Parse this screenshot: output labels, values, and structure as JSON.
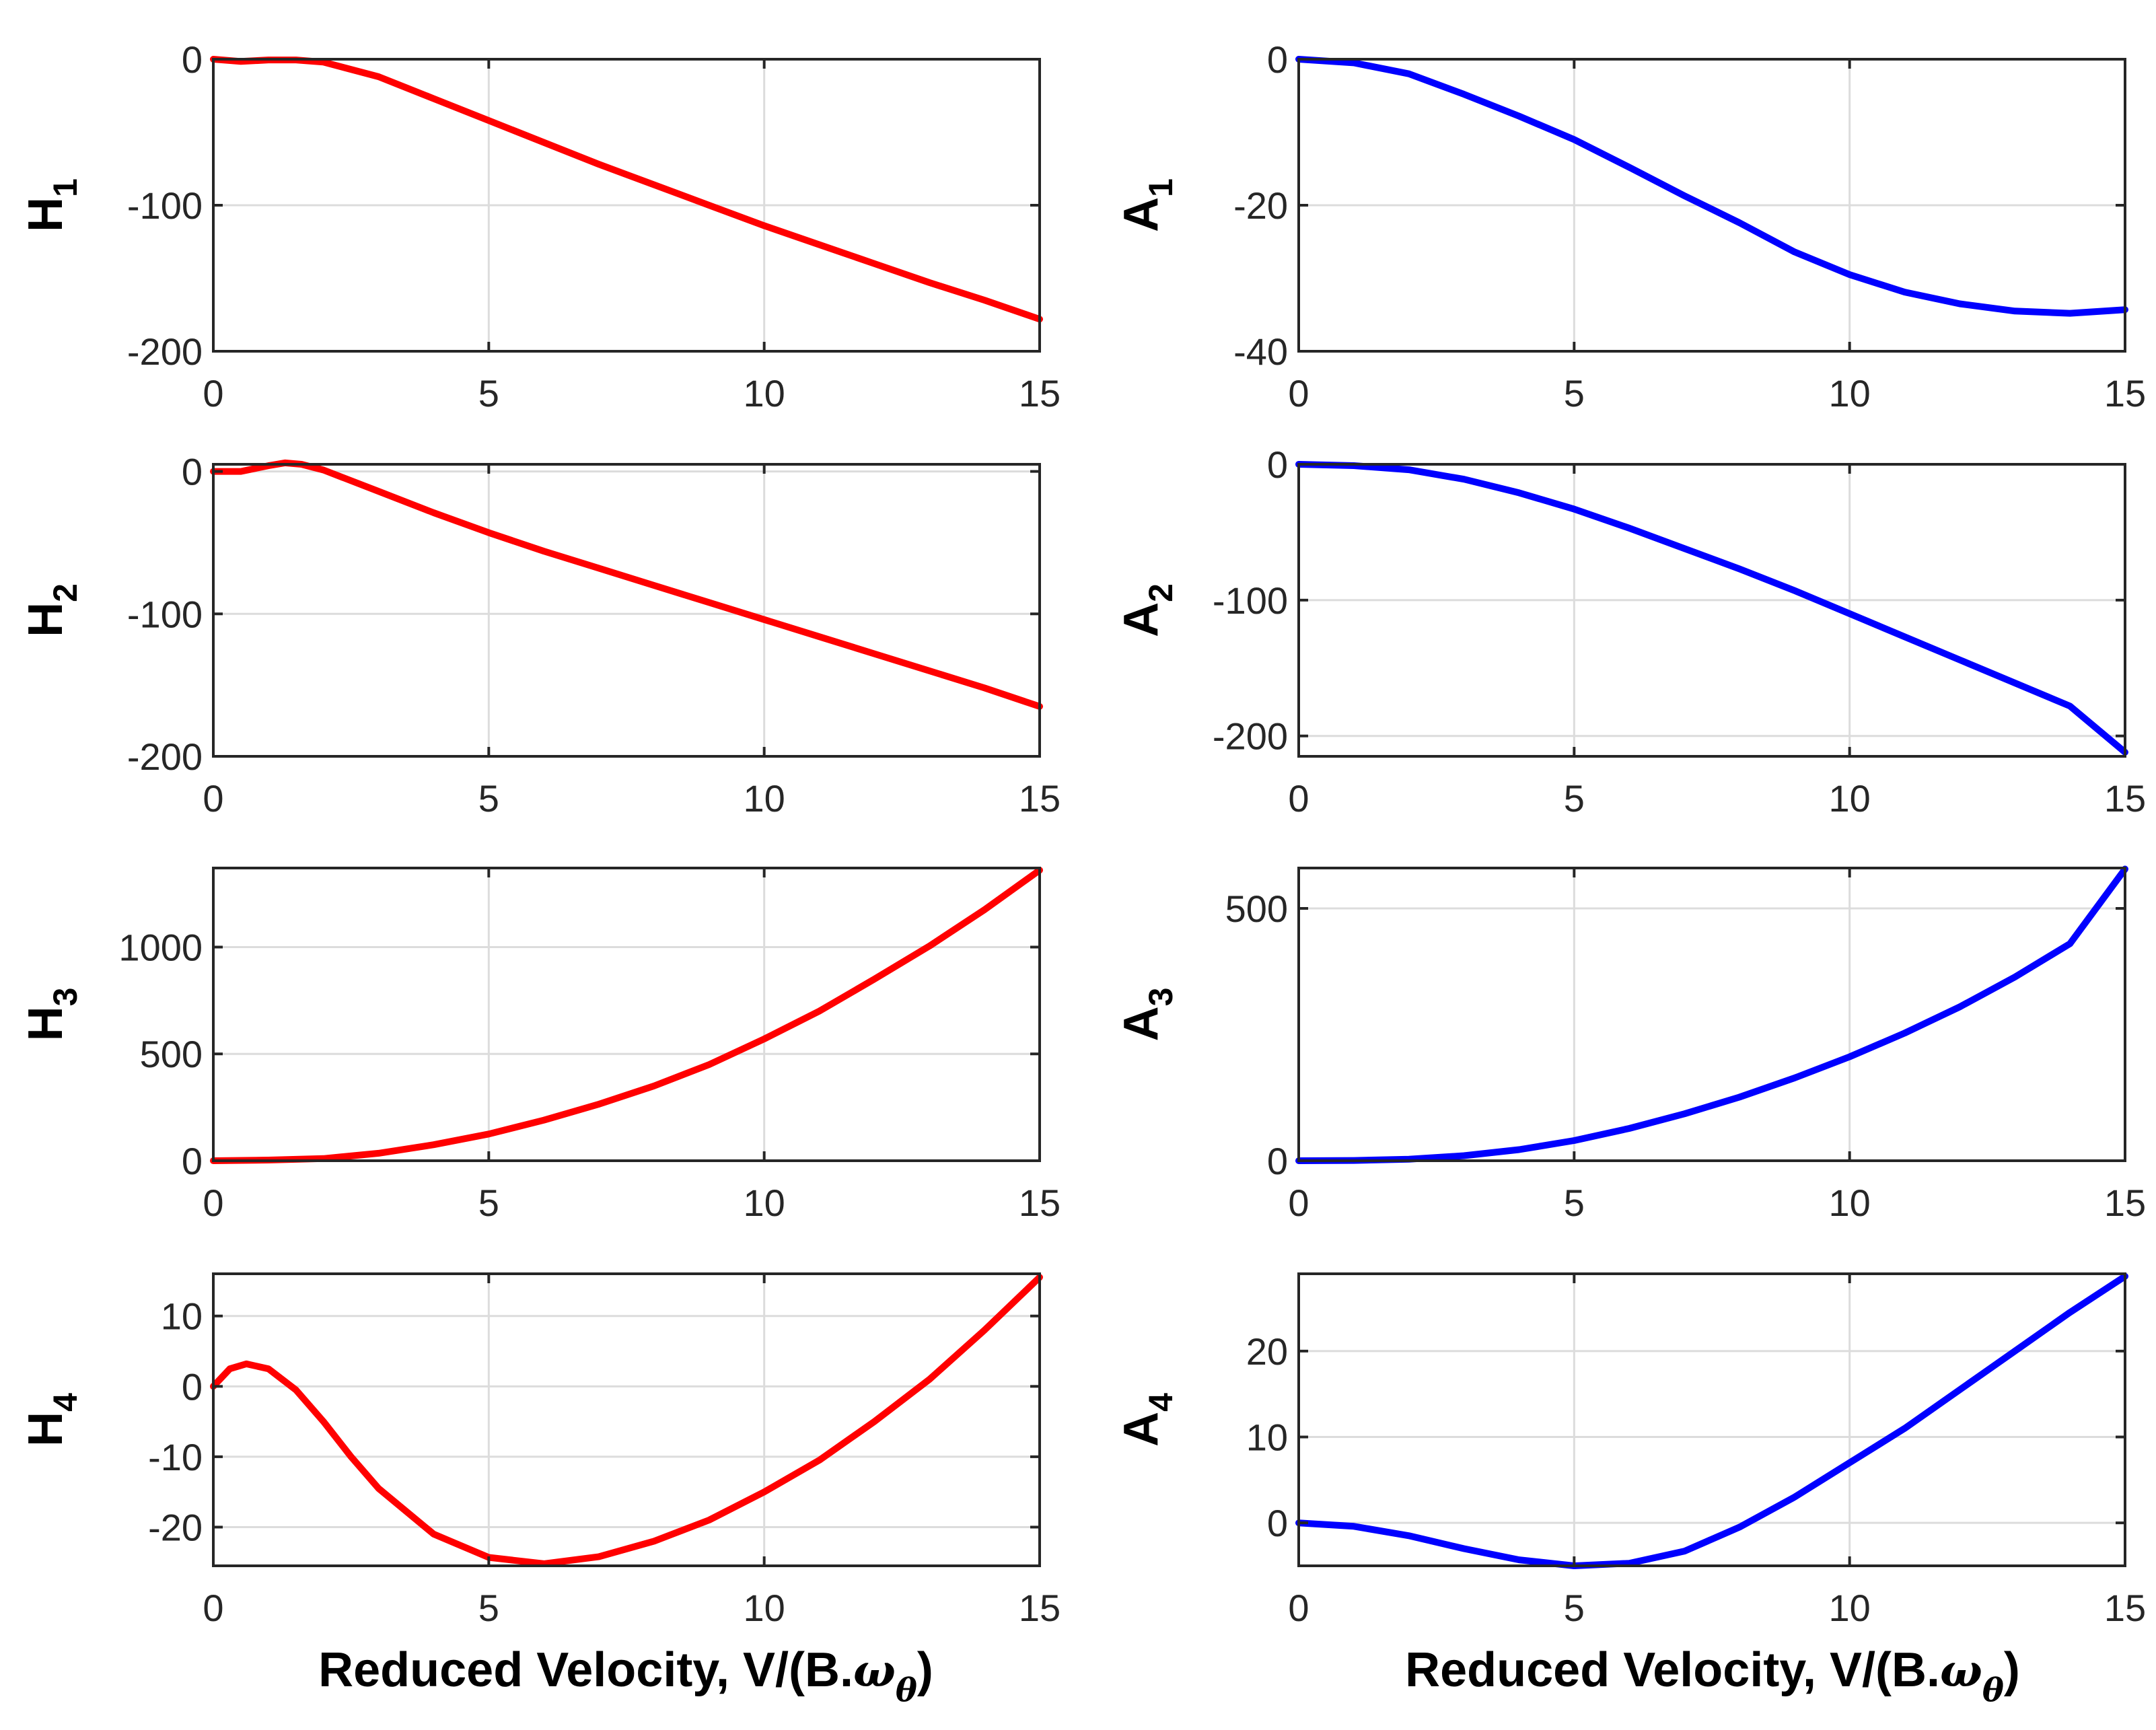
{
  "xlabel": {
    "prefix": "Reduced Velocity, V/(B.",
    "symbol": "ω",
    "subscript": "θ",
    "suffix": ")"
  },
  "colors": {
    "H": "#ff0000",
    "A": "#0000ff"
  },
  "chart_data": [
    {
      "id": "H1",
      "type": "line",
      "ylabel_main": "H",
      "ylabel_sub": "1",
      "color": "#ff0000",
      "xlim": [
        0,
        15
      ],
      "ylim": [
        -200,
        0
      ],
      "xticks": [
        0,
        5,
        10,
        15
      ],
      "yticks": [
        -200,
        -100,
        0
      ],
      "x": [
        0,
        0.5,
        1,
        1.5,
        2,
        3,
        4,
        5,
        6,
        7,
        8,
        9,
        10,
        11,
        12,
        13,
        14,
        15
      ],
      "values": [
        0,
        -1.5,
        -0.5,
        -0.5,
        -2,
        -12,
        -27,
        -42,
        -57,
        -72,
        -86,
        -100,
        -114,
        -127,
        -140,
        -153,
        -165,
        -178
      ]
    },
    {
      "id": "A1",
      "type": "line",
      "ylabel_main": "A",
      "ylabel_sub": "1",
      "color": "#0000ff",
      "xlim": [
        0,
        15
      ],
      "ylim": [
        -40,
        0
      ],
      "xticks": [
        0,
        5,
        10,
        15
      ],
      "yticks": [
        -40,
        -20,
        0
      ],
      "x": [
        0,
        1,
        2,
        3,
        4,
        5,
        6,
        7,
        8,
        9,
        10,
        11,
        12,
        13,
        14,
        15
      ],
      "values": [
        0,
        -0.5,
        -2,
        -4.8,
        -7.8,
        -11,
        -14.8,
        -18.7,
        -22.4,
        -26.4,
        -29.5,
        -31.9,
        -33.5,
        -34.5,
        -34.8,
        -34.3
      ]
    },
    {
      "id": "H2",
      "type": "line",
      "ylabel_main": "H",
      "ylabel_sub": "2",
      "color": "#ff0000",
      "xlim": [
        0,
        15
      ],
      "ylim": [
        -200,
        5
      ],
      "xticks": [
        0,
        5,
        10,
        15
      ],
      "yticks": [
        -200,
        -100,
        0
      ],
      "x": [
        0,
        0.5,
        1,
        1.3,
        1.6,
        2,
        3,
        4,
        5,
        6,
        7,
        8,
        9,
        10,
        11,
        12,
        13,
        14,
        15
      ],
      "values": [
        0,
        0,
        4,
        6,
        5,
        1,
        -14,
        -29,
        -43,
        -56,
        -68,
        -80,
        -92,
        -104,
        -116,
        -128,
        -140,
        -152,
        -165
      ]
    },
    {
      "id": "A2",
      "type": "line",
      "ylabel_main": "A",
      "ylabel_sub": "2",
      "color": "#0000ff",
      "xlim": [
        0,
        15
      ],
      "ylim": [
        -215,
        0
      ],
      "xticks": [
        0,
        5,
        10,
        15
      ],
      "yticks": [
        -200,
        -100,
        0
      ],
      "x": [
        0,
        1,
        2,
        3,
        4,
        5,
        6,
        7,
        8,
        9,
        10,
        11,
        12,
        13,
        14,
        15
      ],
      "values": [
        0,
        -1,
        -4,
        -11,
        -21,
        -33,
        -47,
        -62,
        -77,
        -93,
        -110,
        -127,
        -144,
        -161,
        -178,
        -212
      ]
    },
    {
      "id": "H3",
      "type": "line",
      "ylabel_main": "H",
      "ylabel_sub": "3",
      "color": "#ff0000",
      "xlim": [
        0,
        15
      ],
      "ylim": [
        0,
        1370
      ],
      "xticks": [
        0,
        5,
        10,
        15
      ],
      "yticks": [
        0,
        500,
        1000
      ],
      "x": [
        0,
        1,
        2,
        3,
        4,
        5,
        6,
        7,
        8,
        9,
        10,
        11,
        12,
        13,
        14,
        15
      ],
      "values": [
        0,
        3,
        10,
        35,
        75,
        125,
        190,
        265,
        350,
        450,
        570,
        700,
        850,
        1005,
        1175,
        1360
      ]
    },
    {
      "id": "A3",
      "type": "line",
      "ylabel_main": "A",
      "ylabel_sub": "3",
      "color": "#0000ff",
      "xlim": [
        0,
        15
      ],
      "ylim": [
        0,
        580
      ],
      "xticks": [
        0,
        5,
        10,
        15
      ],
      "yticks": [
        0,
        500
      ],
      "x": [
        0,
        1,
        2,
        3,
        4,
        5,
        6,
        7,
        8,
        9,
        10,
        11,
        12,
        13,
        14,
        15
      ],
      "values": [
        0,
        0.5,
        3,
        10,
        22,
        40,
        64,
        93,
        126,
        164,
        206,
        253,
        305,
        364,
        430,
        578
      ]
    },
    {
      "id": "H4",
      "type": "line",
      "ylabel_main": "H",
      "ylabel_sub": "4",
      "color": "#ff0000",
      "xlim": [
        0,
        15
      ],
      "ylim": [
        -25.5,
        16
      ],
      "xticks": [
        0,
        5,
        10,
        15
      ],
      "yticks": [
        -20,
        -10,
        0,
        10
      ],
      "x": [
        0,
        0.3,
        0.6,
        1,
        1.5,
        2,
        2.5,
        3,
        4,
        5,
        6,
        7,
        8,
        9,
        10,
        11,
        12,
        13,
        14,
        15
      ],
      "values": [
        0,
        2.5,
        3.2,
        2.5,
        -0.5,
        -5,
        -10,
        -14.5,
        -21,
        -24.3,
        -25.2,
        -24.2,
        -22,
        -19,
        -15,
        -10.5,
        -5,
        1,
        8,
        15.5
      ]
    },
    {
      "id": "A4",
      "type": "line",
      "ylabel_main": "A",
      "ylabel_sub": "4",
      "color": "#0000ff",
      "xlim": [
        0,
        15
      ],
      "ylim": [
        -5,
        29
      ],
      "xticks": [
        0,
        5,
        10,
        15
      ],
      "yticks": [
        0,
        10,
        20
      ],
      "x": [
        0,
        1,
        2,
        3,
        4,
        5,
        6,
        7,
        8,
        9,
        10,
        11,
        12,
        13,
        14,
        15
      ],
      "values": [
        0,
        -0.4,
        -1.5,
        -3,
        -4.3,
        -5,
        -4.7,
        -3.3,
        -0.5,
        3,
        7,
        11,
        15.5,
        20,
        24.5,
        28.7
      ]
    }
  ]
}
